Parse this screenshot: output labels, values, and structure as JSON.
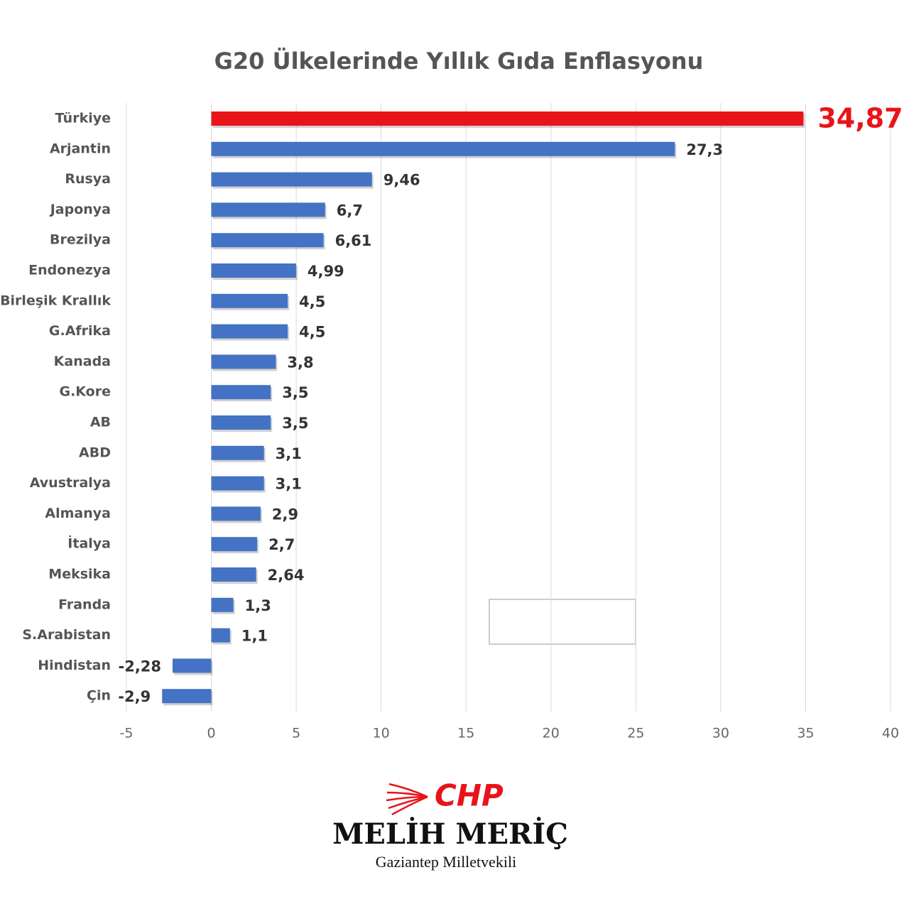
{
  "chart_data": {
    "type": "barh",
    "title": "G20 Ülkelerinde Yıllık Gıda Enflasyonu",
    "categories": [
      "Türkiye",
      "Arjantin",
      "Rusya",
      "Japonya",
      "Brezilya",
      "Endonezya",
      "Birleşik Krallık",
      "G.Afrika",
      "Kanada",
      "G.Kore",
      "AB",
      "ABD",
      "Avustralya",
      "Almanya",
      "İtalya",
      "Meksika",
      "Franda",
      "S.Arabistan",
      "Hindistan",
      "Çin"
    ],
    "values": [
      34.87,
      27.3,
      9.46,
      6.7,
      6.61,
      4.99,
      4.5,
      4.5,
      3.8,
      3.5,
      3.5,
      3.1,
      3.1,
      2.9,
      2.7,
      2.64,
      1.3,
      1.1,
      -2.28,
      -2.9
    ],
    "value_labels": [
      "34,87",
      "27,3",
      "9,46",
      "6,7",
      "6,61",
      "4,99",
      "4,5",
      "4,5",
      "3,8",
      "3,5",
      "3,5",
      "3,1",
      "3,1",
      "2,9",
      "2,7",
      "2,64",
      "1,3",
      "1,1",
      "-2,28",
      "-2,9"
    ],
    "color": "#4472c4",
    "colors": [
      "#e8141a",
      "#4472c4",
      "#4472c4",
      "#4472c4",
      "#4472c4",
      "#4472c4",
      "#4472c4",
      "#4472c4",
      "#4472c4",
      "#4472c4",
      "#4472c4",
      "#4472c4",
      "#4472c4",
      "#4472c4",
      "#4472c4",
      "#4472c4",
      "#4472c4",
      "#4472c4",
      "#4472c4",
      "#4472c4"
    ],
    "xlim": [
      -5,
      40
    ],
    "xticks": [
      -5,
      0,
      5,
      10,
      15,
      20,
      25,
      30,
      35,
      40
    ],
    "grid": true
  },
  "footer": {
    "logo": "CHP",
    "name": "MELİH MERİÇ",
    "subtitle": "Gaziantep Milletvekili"
  }
}
